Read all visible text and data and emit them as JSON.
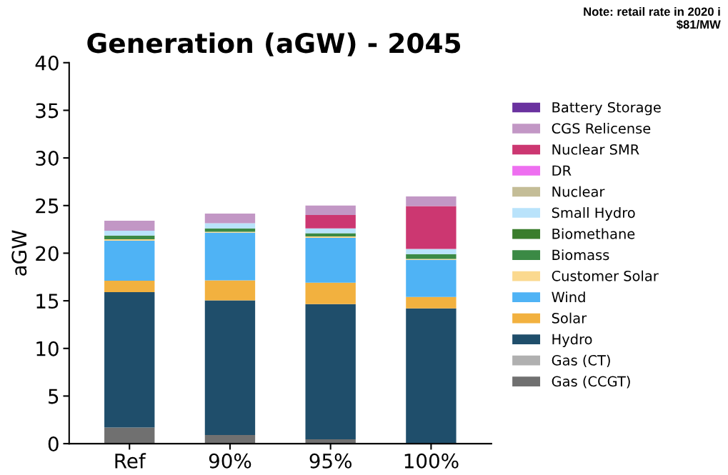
{
  "chart_data": {
    "type": "bar",
    "title": "Generation (aGW) - 2045",
    "ylabel": "aGW",
    "annotations": [
      "Note: retail rate in 2020 i\n$81/MW"
    ],
    "categories": [
      "Ref",
      "90%",
      "95%",
      "100%"
    ],
    "stacked": true,
    "legend": "right",
    "ylim": [
      0,
      40
    ],
    "yticks": [
      0,
      5,
      10,
      15,
      20,
      25,
      30,
      35,
      40
    ],
    "grid": false,
    "series": [
      {
        "name": "Gas (CCGT)",
        "color": "#707070",
        "values": [
          1.7,
          0.9,
          0.45,
          0
        ]
      },
      {
        "name": "Gas (CT)",
        "color": "#b0b0b0",
        "values": [
          0,
          0,
          0,
          0
        ]
      },
      {
        "name": "Hydro",
        "color": "#1f4e6b",
        "values": [
          14.2,
          14.15,
          14.2,
          14.2
        ]
      },
      {
        "name": "Solar",
        "color": "#f2b13f",
        "values": [
          1.2,
          2.1,
          2.25,
          1.2
        ]
      },
      {
        "name": "Wind",
        "color": "#4fb3f5",
        "values": [
          4.2,
          5.0,
          4.7,
          3.9
        ]
      },
      {
        "name": "Customer Solar",
        "color": "#fbd98f",
        "values": [
          0.15,
          0.1,
          0.15,
          0.1
        ]
      },
      {
        "name": "Biomass",
        "color": "#3b8a45",
        "values": [
          0.4,
          0.35,
          0.35,
          0.5
        ]
      },
      {
        "name": "Biomethane",
        "color": "#3a7d2c",
        "values": [
          0,
          0,
          0,
          0
        ]
      },
      {
        "name": "Small Hydro",
        "color": "#b9e3fb",
        "values": [
          0.5,
          0.55,
          0.5,
          0.55
        ]
      },
      {
        "name": "Nuclear",
        "color": "#c4bd97",
        "values": [
          0,
          0,
          0,
          0
        ]
      },
      {
        "name": "DR",
        "color": "#ee6ff0",
        "values": [
          0,
          0,
          0,
          0
        ]
      },
      {
        "name": "Nuclear SMR",
        "color": "#cc3771",
        "values": [
          0,
          0,
          1.4,
          4.5
        ]
      },
      {
        "name": "CGS Relicense",
        "color": "#c297c5",
        "values": [
          1.05,
          1.0,
          1.0,
          1.0
        ]
      },
      {
        "name": "Battery Storage",
        "color": "#6a329f",
        "values": [
          0,
          0,
          0,
          0
        ]
      }
    ]
  }
}
